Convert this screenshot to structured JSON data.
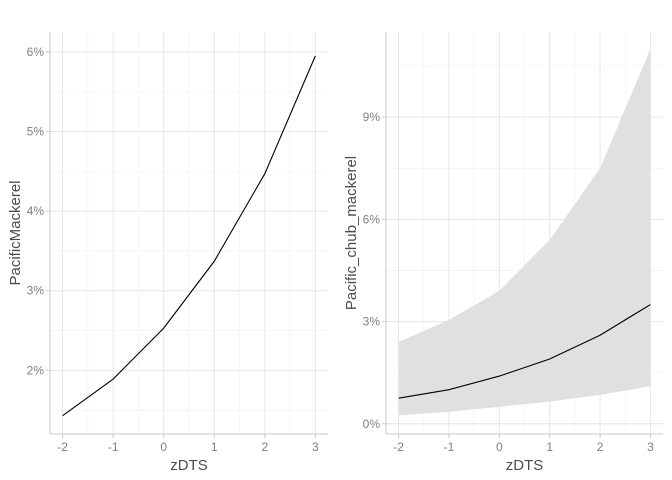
{
  "chart_data": [
    {
      "type": "line",
      "xlabel": "zDTS",
      "ylabel": "PacificMackerel",
      "xlim": [
        -2.25,
        3.25
      ],
      "ylim": [
        1.2,
        6.25
      ],
      "xticks": [
        -2,
        -1,
        0,
        1,
        2,
        3
      ],
      "xtick_labels": [
        "-2",
        "-1",
        "0",
        "1",
        "2",
        "3"
      ],
      "yticks": [
        2,
        3,
        4,
        5,
        6
      ],
      "ytick_labels": [
        "2%",
        "3%",
        "4%",
        "5%",
        "6%"
      ],
      "grid": true,
      "series": [
        {
          "x": [
            -2,
            -1,
            0,
            1,
            2,
            3
          ],
          "y": [
            1.43,
            1.89,
            2.53,
            3.37,
            4.47,
            5.95
          ],
          "line_color": "#000000"
        }
      ]
    },
    {
      "type": "line",
      "xlabel": "zDTS",
      "ylabel": "Pacific_chub_mackerel",
      "xlim": [
        -2.25,
        3.25
      ],
      "ylim": [
        -0.3,
        11.5
      ],
      "xticks": [
        -2,
        -1,
        0,
        1,
        2,
        3
      ],
      "xtick_labels": [
        "-2",
        "-1",
        "0",
        "1",
        "2",
        "3"
      ],
      "yticks": [
        0,
        3,
        6,
        9
      ],
      "ytick_labels": [
        "0%",
        "3%",
        "6%",
        "9%"
      ],
      "grid": true,
      "series": [
        {
          "x": [
            -2,
            -1,
            0,
            1,
            2,
            3
          ],
          "y": [
            0.75,
            1.0,
            1.4,
            1.9,
            2.6,
            3.5
          ],
          "lower": [
            0.25,
            0.35,
            0.5,
            0.65,
            0.85,
            1.1
          ],
          "upper": [
            2.4,
            3.05,
            3.9,
            5.4,
            7.5,
            11.0
          ],
          "line_color": "#000000",
          "ribbon_color": "#e0e0e0"
        }
      ]
    }
  ]
}
